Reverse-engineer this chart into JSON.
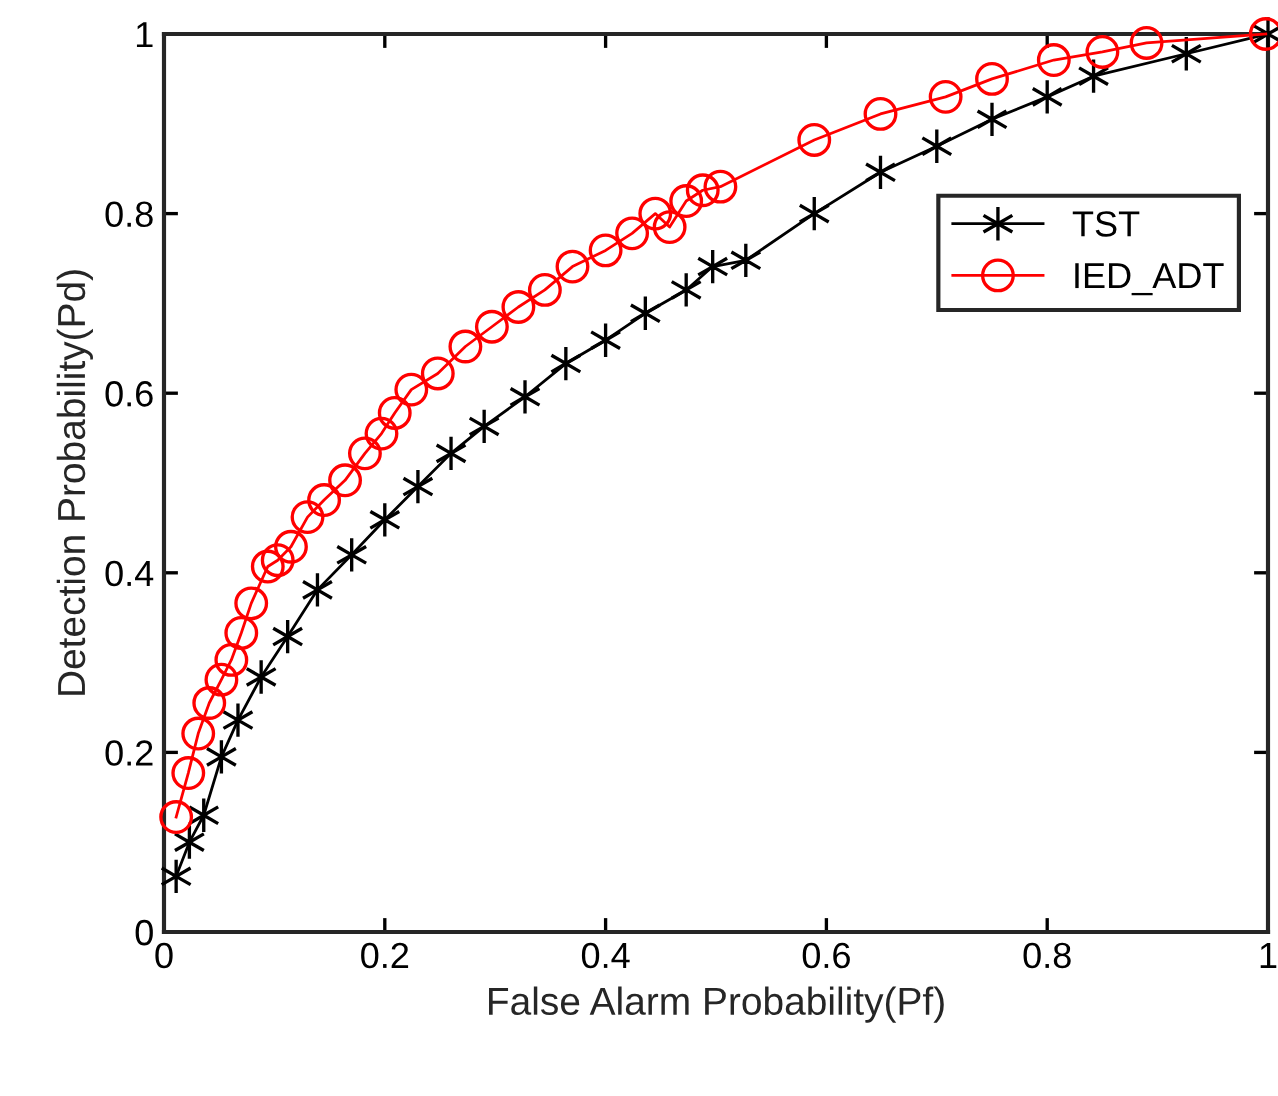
{
  "chart_data": {
    "type": "line",
    "xlabel": "False Alarm Probability(Pf)",
    "ylabel": "Detection Probability(Pd)",
    "xlim": [
      0,
      1
    ],
    "ylim": [
      0,
      1
    ],
    "xticks": [
      0,
      0.2,
      0.4,
      0.6,
      0.8,
      1
    ],
    "yticks": [
      0,
      0.2,
      0.4,
      0.6,
      0.8,
      1
    ],
    "grid": false,
    "legend": "top right",
    "line_style": "solid",
    "series": [
      {
        "name": "TST",
        "color": "#000000",
        "marker": "cross",
        "x": [
          0.011,
          0.023,
          0.036,
          0.052,
          0.067,
          0.088,
          0.112,
          0.139,
          0.17,
          0.2,
          0.23,
          0.26,
          0.29,
          0.327,
          0.364,
          0.4,
          0.436,
          0.473,
          0.497,
          0.527,
          0.589,
          0.649,
          0.7,
          0.75,
          0.8,
          0.842,
          0.926,
          1.0
        ],
        "values": [
          0.062,
          0.1,
          0.13,
          0.195,
          0.236,
          0.284,
          0.329,
          0.381,
          0.42,
          0.459,
          0.496,
          0.533,
          0.563,
          0.596,
          0.633,
          0.659,
          0.689,
          0.715,
          0.741,
          0.748,
          0.8,
          0.846,
          0.875,
          0.905,
          0.93,
          0.953,
          0.978,
          1.0
        ]
      },
      {
        "name": "IED_ADT",
        "color": "#ff0000",
        "marker": "circle",
        "x": [
          0.011,
          0.022,
          0.031,
          0.041,
          0.052,
          0.061,
          0.07,
          0.079,
          0.094,
          0.103,
          0.115,
          0.13,
          0.145,
          0.164,
          0.182,
          0.197,
          0.209,
          0.224,
          0.248,
          0.273,
          0.297,
          0.321,
          0.345,
          0.37,
          0.4,
          0.424,
          0.445,
          0.458,
          0.473,
          0.488,
          0.504,
          0.589,
          0.649,
          0.708,
          0.75,
          0.806,
          0.85,
          0.89,
          0.998
        ],
        "values": [
          0.128,
          0.177,
          0.221,
          0.255,
          0.281,
          0.303,
          0.333,
          0.366,
          0.407,
          0.414,
          0.429,
          0.462,
          0.481,
          0.503,
          0.533,
          0.555,
          0.578,
          0.604,
          0.622,
          0.652,
          0.674,
          0.696,
          0.715,
          0.741,
          0.759,
          0.778,
          0.8,
          0.785,
          0.814,
          0.826,
          0.83,
          0.882,
          0.911,
          0.93,
          0.95,
          0.971,
          0.98,
          0.99,
          1.0
        ]
      }
    ]
  }
}
